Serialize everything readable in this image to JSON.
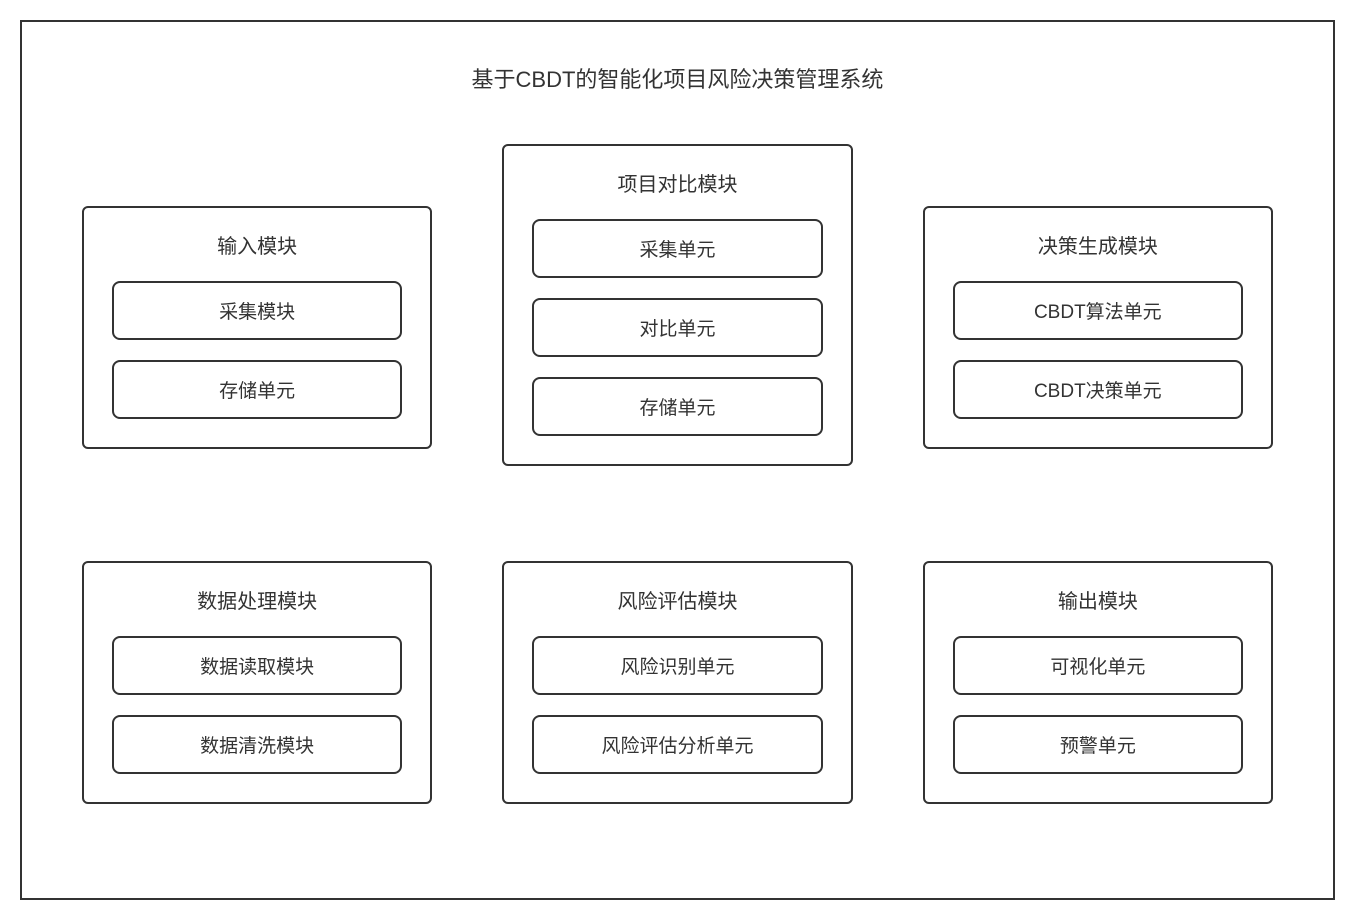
{
  "diagram": {
    "type": "block-diagram",
    "title": "基于CBDT的智能化项目风险决策管理系统",
    "background_color": "#ffffff",
    "border_color": "#333333",
    "text_color": "#333333",
    "title_fontsize": 22,
    "module_title_fontsize": 20,
    "unit_fontsize": 19,
    "outer_border_width": 2,
    "module_border_width": 2,
    "module_border_radius": 6,
    "unit_border_width": 2,
    "unit_border_radius": 8,
    "layout": {
      "rows": 2,
      "cols": 3,
      "column_gap": 70,
      "row_gap": 50
    },
    "modules": [
      {
        "row": 0,
        "col": 0,
        "title": "输入模块",
        "units": [
          "采集模块",
          "存储单元"
        ]
      },
      {
        "row": 0,
        "col": 1,
        "title": "项目对比模块",
        "units": [
          "采集单元",
          "对比单元",
          "存储单元"
        ]
      },
      {
        "row": 0,
        "col": 2,
        "title": "决策生成模块",
        "units": [
          "CBDT算法单元",
          "CBDT决策单元"
        ]
      },
      {
        "row": 1,
        "col": 0,
        "title": "数据处理模块",
        "units": [
          "数据读取模块",
          "数据清洗模块"
        ]
      },
      {
        "row": 1,
        "col": 1,
        "title": "风险评估模块",
        "units": [
          "风险识别单元",
          "风险评估分析单元"
        ]
      },
      {
        "row": 1,
        "col": 2,
        "title": "输出模块",
        "units": [
          "可视化单元",
          "预警单元"
        ]
      }
    ]
  }
}
